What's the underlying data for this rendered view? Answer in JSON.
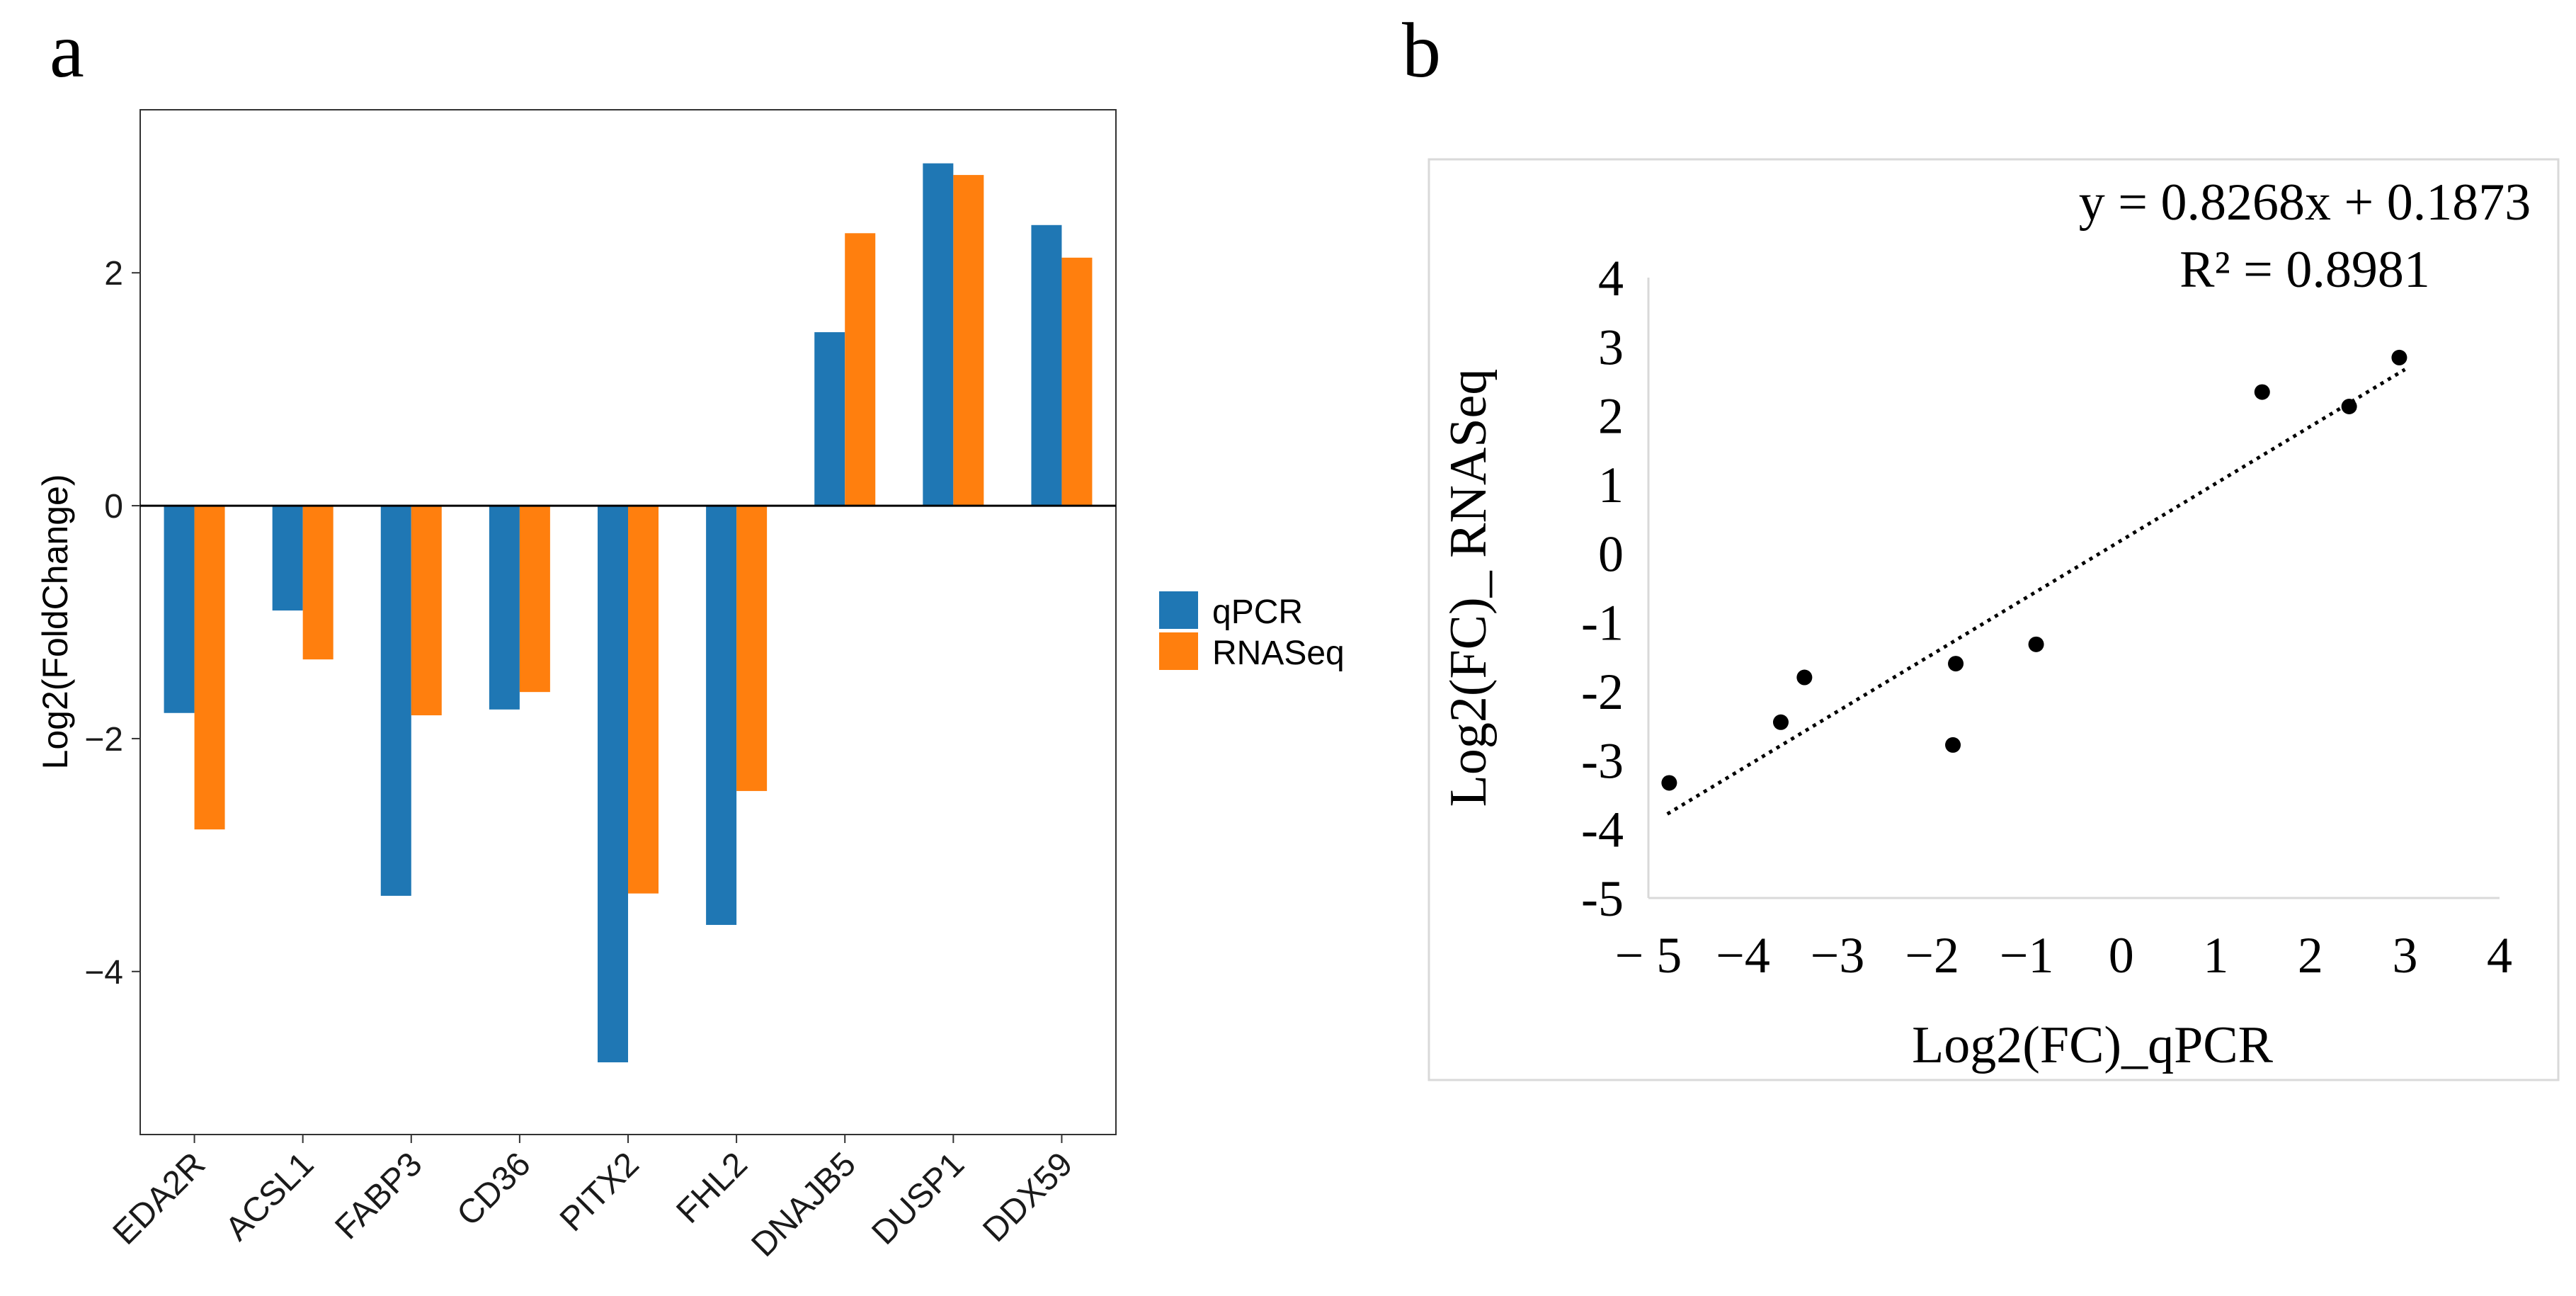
{
  "panel_a": {
    "label": "a",
    "colors": {
      "qPCR": "#1F77B4",
      "RNASeq": "#FF7F0E"
    },
    "chart_data": {
      "type": "bar",
      "title": "",
      "xlabel": "",
      "ylabel": "Log2(FoldChange)",
      "ylim": [
        -5.4,
        3.4
      ],
      "yticks": [
        2,
        0,
        -2,
        -4
      ],
      "ytick_labels": [
        "2",
        "0",
        "−2",
        "−4"
      ],
      "categories": [
        "EDA2R",
        "ACSL1",
        "FABP3",
        "CD36",
        "PITX2",
        "FHL2",
        "DNAJB5",
        "DUSP1",
        "DDX59"
      ],
      "series": [
        {
          "name": "qPCR",
          "values": [
            -1.78,
            -0.9,
            -3.35,
            -1.75,
            -4.78,
            -3.6,
            1.49,
            2.94,
            2.41
          ]
        },
        {
          "name": "RNASeq",
          "values": [
            -2.78,
            -1.32,
            -1.8,
            -1.6,
            -3.33,
            -2.45,
            2.34,
            2.84,
            2.13
          ]
        }
      ],
      "legend": {
        "position": "right",
        "entries": [
          "qPCR",
          "RNASeq"
        ]
      }
    }
  },
  "panel_b": {
    "label": "b",
    "equation": "y = 0.8268x + 0.1873",
    "r_squared": "R² = 0.8981",
    "chart_data": {
      "type": "scatter",
      "title": "",
      "xlabel": "Log2(FC)_qPCR",
      "ylabel": "Log2(FC)_ RNASeq",
      "xlim": [
        -5,
        4
      ],
      "ylim": [
        -5,
        4
      ],
      "xticks": [
        -5,
        -4,
        -3,
        -2,
        -1,
        0,
        1,
        2,
        3,
        4
      ],
      "xtick_labels": [
        "− 5",
        "−4",
        "−3",
        "−2",
        "−1",
        "0",
        "1",
        "2",
        "3",
        "4"
      ],
      "yticks": [
        4,
        3,
        2,
        1,
        0,
        -1,
        -2,
        -3,
        -4,
        -5
      ],
      "ytick_labels": [
        "4",
        "3",
        "2",
        "1",
        "0",
        "-1",
        "-2",
        "-3",
        "-4",
        "-5"
      ],
      "points": [
        {
          "x": -4.78,
          "y": -3.33
        },
        {
          "x": -3.6,
          "y": -2.45
        },
        {
          "x": -3.35,
          "y": -1.8
        },
        {
          "x": -1.78,
          "y": -2.78
        },
        {
          "x": -1.75,
          "y": -1.6
        },
        {
          "x": -0.9,
          "y": -1.32
        },
        {
          "x": 1.49,
          "y": 2.34
        },
        {
          "x": 2.41,
          "y": 2.13
        },
        {
          "x": 2.94,
          "y": 2.84
        }
      ],
      "trendline": {
        "type": "linear",
        "slope": 0.8268,
        "intercept": 0.1873,
        "x_range": [
          -4.8,
          3
        ],
        "style": "dotted"
      }
    }
  }
}
